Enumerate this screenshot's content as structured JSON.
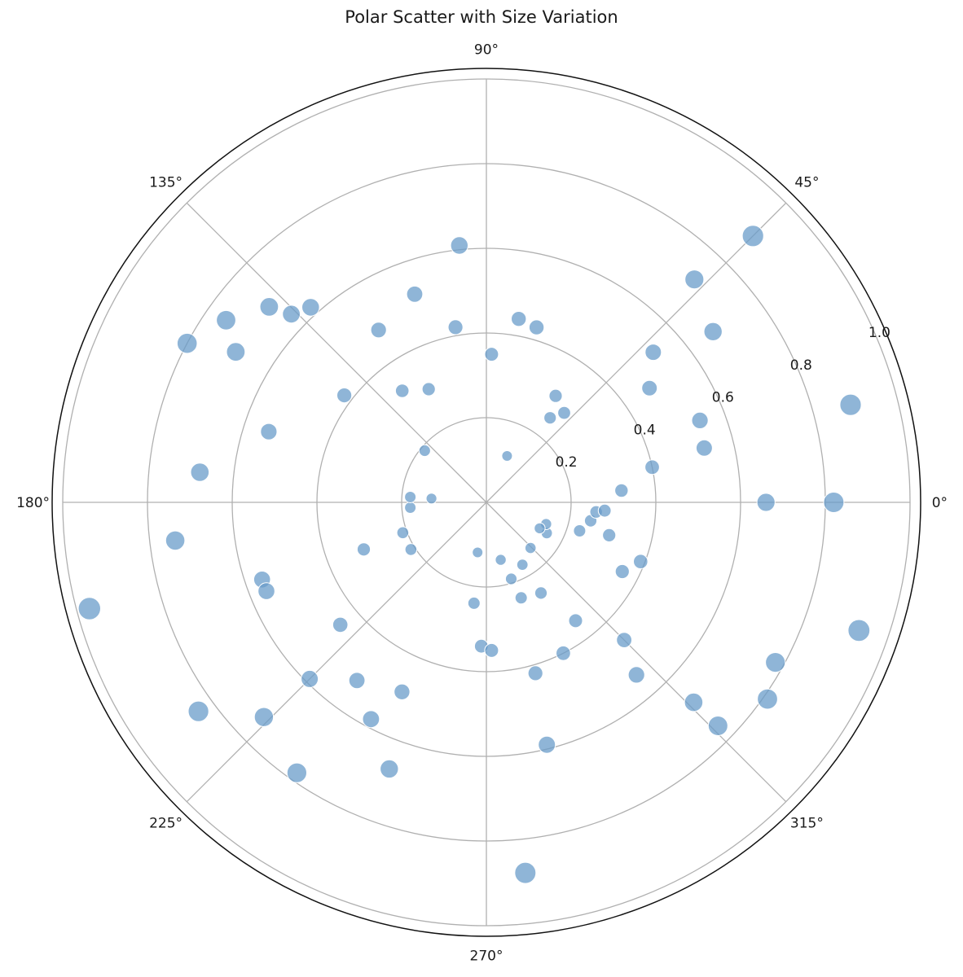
{
  "chart_data": {
    "type": "scatter",
    "projection": "polar",
    "title": "Polar Scatter with Size Variation",
    "theta_unit": "degrees",
    "rlim": [
      0,
      1.0
    ],
    "grid": true,
    "radial_tick_labels": [
      "0.2",
      "0.4",
      "0.6",
      "0.8",
      "1.0"
    ],
    "radial_tick_values": [
      0.2,
      0.4,
      0.6,
      0.8,
      1.0
    ],
    "angular_tick_labels": [
      "0°",
      "45°",
      "90°",
      "135°",
      "180°",
      "225°",
      "270°",
      "315°"
    ],
    "angular_tick_values": [
      0,
      45,
      90,
      135,
      180,
      225,
      270,
      315
    ],
    "marker_color": "#6a9cc9",
    "marker_edge_color": "#ffffff",
    "size_encoding": "marker size grows with radius",
    "points": [
      {
        "theta": 96,
        "r": 0.61
      },
      {
        "theta": 88,
        "r": 0.35
      },
      {
        "theta": 80,
        "r": 0.44
      },
      {
        "theta": 74,
        "r": 0.43
      },
      {
        "theta": 100,
        "r": 0.42
      },
      {
        "theta": 109,
        "r": 0.52
      },
      {
        "theta": 122,
        "r": 0.48
      },
      {
        "theta": 127,
        "r": 0.33
      },
      {
        "theta": 140,
        "r": 0.19
      },
      {
        "theta": 117,
        "r": 0.3
      },
      {
        "theta": 132,
        "r": 0.62
      },
      {
        "theta": 136,
        "r": 0.64
      },
      {
        "theta": 138,
        "r": 0.69
      },
      {
        "theta": 145,
        "r": 0.75
      },
      {
        "theta": 149,
        "r": 0.69
      },
      {
        "theta": 143,
        "r": 0.42
      },
      {
        "theta": 152,
        "r": 0.8
      },
      {
        "theta": 162,
        "r": 0.54
      },
      {
        "theta": 174,
        "r": 0.68
      },
      {
        "theta": 187,
        "r": 0.74
      },
      {
        "theta": 195,
        "r": 0.97
      },
      {
        "theta": 199,
        "r": 0.56
      },
      {
        "theta": 202,
        "r": 0.56
      },
      {
        "theta": 220,
        "r": 0.45
      },
      {
        "theta": 224,
        "r": 0.73
      },
      {
        "theta": 216,
        "r": 0.84
      },
      {
        "theta": 234,
        "r": 0.52
      },
      {
        "theta": 225,
        "r": 0.59
      },
      {
        "theta": 242,
        "r": 0.58
      },
      {
        "theta": 235,
        "r": 0.78
      },
      {
        "theta": 250,
        "r": 0.67
      },
      {
        "theta": 246,
        "r": 0.49
      },
      {
        "theta": 201,
        "r": 0.31
      },
      {
        "theta": 200,
        "r": 0.21
      },
      {
        "theta": 212,
        "r": 0.21
      },
      {
        "theta": 184,
        "r": 0.18
      },
      {
        "theta": 176,
        "r": 0.18
      },
      {
        "theta": 176,
        "r": 0.13
      },
      {
        "theta": 260,
        "r": 0.12
      },
      {
        "theta": 263,
        "r": 0.24
      },
      {
        "theta": 268,
        "r": 0.34
      },
      {
        "theta": 272,
        "r": 0.35
      },
      {
        "theta": 286,
        "r": 0.42
      },
      {
        "theta": 284,
        "r": 0.59
      },
      {
        "theta": 276,
        "r": 0.88
      },
      {
        "theta": 297,
        "r": 0.4
      },
      {
        "theta": 307,
        "r": 0.35
      },
      {
        "theta": 301,
        "r": 0.25
      },
      {
        "theta": 284,
        "r": 0.14
      },
      {
        "theta": 288,
        "r": 0.19
      },
      {
        "theta": 300,
        "r": 0.17
      },
      {
        "theta": 290,
        "r": 0.24
      },
      {
        "theta": 314,
        "r": 0.15
      },
      {
        "theta": 333,
        "r": 0.16
      },
      {
        "theta": 315,
        "r": 0.46
      },
      {
        "theta": 311,
        "r": 0.54
      },
      {
        "theta": 316,
        "r": 0.68
      },
      {
        "theta": 316,
        "r": 0.76
      },
      {
        "theta": 325,
        "r": 0.81
      },
      {
        "theta": 333,
        "r": 0.36
      },
      {
        "theta": 345,
        "r": 0.3
      },
      {
        "theta": 339,
        "r": 0.39
      },
      {
        "theta": 340,
        "r": 0.15
      },
      {
        "theta": 350,
        "r": 0.25
      },
      {
        "theta": 355,
        "r": 0.26
      },
      {
        "theta": 356,
        "r": 0.28
      },
      {
        "theta": 343,
        "r": 0.23
      },
      {
        "theta": 334,
        "r": 0.14
      },
      {
        "theta": 0,
        "r": 0.66
      },
      {
        "theta": 0,
        "r": 0.82
      },
      {
        "theta": 341,
        "r": 0.93
      },
      {
        "theta": 331,
        "r": 0.78
      },
      {
        "theta": 12,
        "r": 0.4
      },
      {
        "theta": 5,
        "r": 0.32
      },
      {
        "theta": 14,
        "r": 0.53
      },
      {
        "theta": 21,
        "r": 0.54
      },
      {
        "theta": 15,
        "r": 0.89
      },
      {
        "theta": 35,
        "r": 0.47
      },
      {
        "theta": 42,
        "r": 0.53
      },
      {
        "theta": 57,
        "r": 0.3
      },
      {
        "theta": 53,
        "r": 0.25
      },
      {
        "theta": 49,
        "r": 0.28
      },
      {
        "theta": 47,
        "r": 0.72
      },
      {
        "theta": 45,
        "r": 0.89
      },
      {
        "theta": 66,
        "r": 0.12
      },
      {
        "theta": 37,
        "r": 0.67
      }
    ]
  }
}
